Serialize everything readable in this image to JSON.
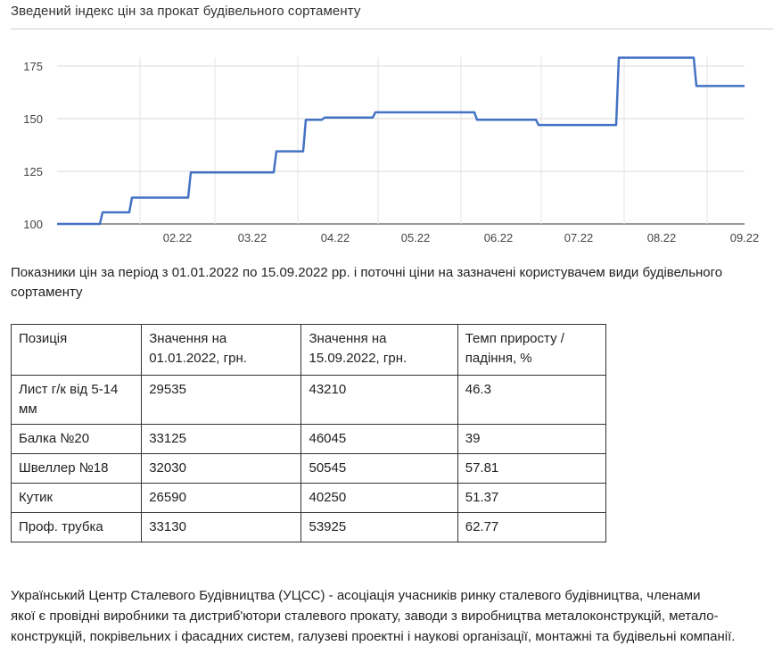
{
  "title": "Зведений індекс цін за прокат будівельного сортаменту",
  "chart_data": {
    "type": "line",
    "interpolation": "step",
    "title": "Зведений індекс цін за прокат будівельного сортаменту",
    "xlabel": "",
    "ylabel": "",
    "x_ticks": [
      "02.22",
      "03.22",
      "04.22",
      "05.22",
      "06.22",
      "07.22",
      "08.22",
      "09.22"
    ],
    "y_ticks": [
      100,
      125,
      150,
      175
    ],
    "ylim": [
      100,
      180
    ],
    "xlim": [
      "2022-01-01",
      "2022-09-15"
    ],
    "grid": true,
    "legend": "none",
    "series": [
      {
        "color": "#4472c4",
        "points": [
          [
            "2022-01-01",
            100
          ],
          [
            "2022-01-17",
            100
          ],
          [
            "2022-01-18",
            105.5
          ],
          [
            "2022-01-28",
            105.5
          ],
          [
            "2022-01-29",
            112.5
          ],
          [
            "2022-02-19",
            112.5
          ],
          [
            "2022-02-20",
            124.5
          ],
          [
            "2022-03-23",
            124.5
          ],
          [
            "2022-03-24",
            134.5
          ],
          [
            "2022-04-03",
            134.5
          ],
          [
            "2022-04-04",
            149.5
          ],
          [
            "2022-04-10",
            149.5
          ],
          [
            "2022-04-11",
            150.5
          ],
          [
            "2022-04-29",
            150.5
          ],
          [
            "2022-04-30",
            153
          ],
          [
            "2022-06-06",
            153
          ],
          [
            "2022-06-07",
            149.5
          ],
          [
            "2022-06-29",
            149.5
          ],
          [
            "2022-06-30",
            147
          ],
          [
            "2022-07-29",
            147
          ],
          [
            "2022-07-30",
            179
          ],
          [
            "2022-08-27",
            179
          ],
          [
            "2022-08-28",
            165.5
          ],
          [
            "2022-09-15",
            165.5
          ]
        ]
      }
    ]
  },
  "caption": "Показники цін за період з 01.01.2022 по 15.09.2022 рр. і поточні ціни на зазначені користувачем види будівельного сортаменту",
  "table": {
    "headers": [
      "Позиція",
      "Значення на 01.01.2022, грн.",
      "Значення на 15.09.2022, грн.",
      "Темп приросту / падіння, %"
    ],
    "rows": [
      [
        "Лист г/к від 5-14 мм",
        "29535",
        "43210",
        "46.3"
      ],
      [
        "Балка №20",
        "33125",
        "46045",
        "39"
      ],
      [
        "Швеллер №18",
        "32030",
        "50545",
        "57.81"
      ],
      [
        "Кутик",
        "26590",
        "40250",
        "51.37"
      ],
      [
        "Проф. трубка",
        "33130",
        "53925",
        "62.77"
      ]
    ]
  },
  "footer": [
    "Український Центр Сталевого Будівництва (УЦСС) - асоціація учасників ринку сталевого будівництва, членами",
    "якої є провідні виробники та дистриб'ютори сталевого прокату, заводи з виробництва металоконструкцій, метало-",
    "конструкцій, покрівельних і фасадних систем, галузеві проектні і наукові організації, монтажні та будівельні компанії."
  ]
}
